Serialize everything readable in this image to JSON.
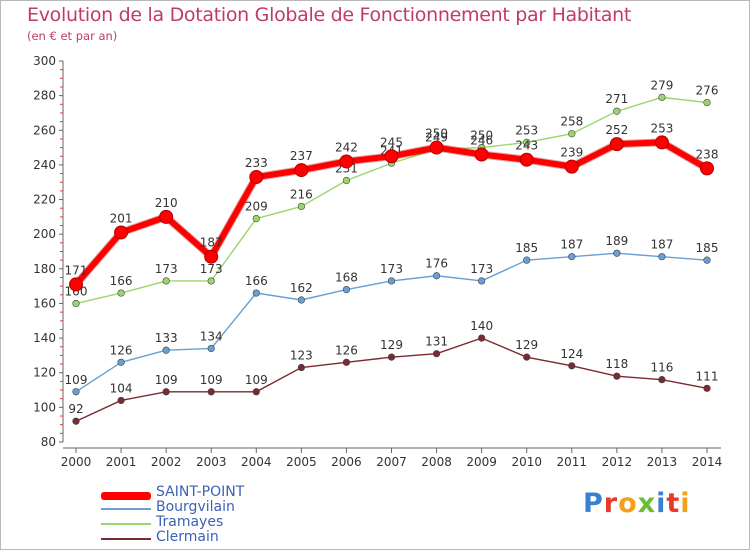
{
  "title": "Evolution de la Dotation Globale de Fonctionnement par Habitant",
  "subtitle": "(en € et par an)",
  "logo": {
    "text": "Proxiti",
    "letters": [
      {
        "char": "P",
        "color": "#3b7fd0"
      },
      {
        "char": "r",
        "color": "#e83a2a"
      },
      {
        "char": "o",
        "color": "#f2a11d"
      },
      {
        "char": "x",
        "color": "#6bbd2e"
      },
      {
        "char": "i",
        "color": "#3b7fd0"
      },
      {
        "char": "t",
        "color": "#e83a2a"
      },
      {
        "char": "i",
        "color": "#f2a11d"
      }
    ]
  },
  "chart_data": {
    "type": "line",
    "title": "Evolution de la Dotation Globale de Fonctionnement par Habitant",
    "subtitle": "(en € et par an)",
    "x": [
      2000,
      2001,
      2002,
      2003,
      2004,
      2005,
      2006,
      2007,
      2008,
      2009,
      2010,
      2011,
      2012,
      2013,
      2014
    ],
    "ylim": [
      80,
      300
    ],
    "yticks": [
      80,
      100,
      120,
      140,
      160,
      180,
      200,
      220,
      240,
      260,
      280,
      300
    ],
    "grid": false,
    "legend_placement": "bottom-left",
    "series": [
      {
        "name": "SAINT-POINT",
        "color": "#ff0000",
        "bold": true,
        "values": [
          171,
          201,
          210,
          187,
          233,
          237,
          242,
          245,
          250,
          246,
          243,
          239,
          252,
          253,
          238
        ],
        "labels": [
          "171",
          "201",
          "210",
          "187",
          "233",
          "237",
          "242",
          "245",
          "250",
          "246",
          "243",
          "239",
          "252",
          "253",
          "238"
        ]
      },
      {
        "name": "Bourgvilain",
        "color": "#6a9fd4",
        "bold": false,
        "values": [
          109,
          126,
          133,
          134,
          166,
          162,
          168,
          173,
          176,
          173,
          185,
          187,
          189,
          187,
          185
        ],
        "labels": [
          "109",
          "126",
          "133",
          "134",
          "166",
          "162",
          "168",
          "173",
          "176",
          "173",
          "185",
          "187",
          "189",
          "187",
          "185"
        ]
      },
      {
        "name": "Tramayes",
        "color": "#9bd66a",
        "bold": false,
        "values": [
          160,
          166,
          173,
          173,
          209,
          216,
          231,
          241,
          249,
          250,
          253,
          258,
          271,
          279,
          276
        ],
        "labels": [
          "160",
          "166",
          "173",
          "173",
          "209",
          "216",
          "231",
          "241",
          "249",
          "250",
          "253",
          "258",
          "271",
          "279",
          "276"
        ]
      },
      {
        "name": "Clermain",
        "color": "#7a2a30",
        "bold": false,
        "values": [
          92,
          104,
          109,
          109,
          109,
          123,
          126,
          129,
          131,
          140,
          129,
          124,
          118,
          116,
          111
        ],
        "labels": [
          "92",
          "104",
          "109",
          "109",
          "109",
          "123",
          "126",
          "129",
          "131",
          "140",
          "129",
          "124",
          "118",
          "116",
          "111"
        ]
      }
    ]
  }
}
